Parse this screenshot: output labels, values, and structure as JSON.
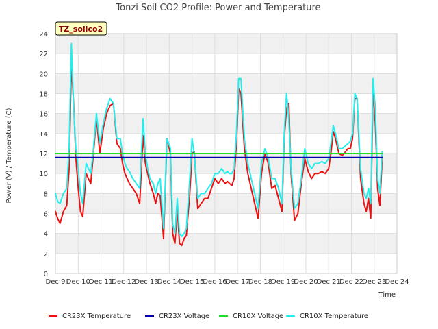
{
  "chart_data": {
    "type": "line",
    "title": "Tonzi Soil CO2 Profile: Power and Temperature",
    "tag": "TZ_soilco2",
    "xlabel": "Time",
    "ylabel": "Power (V) / Temperature (C)",
    "xlim": [
      9,
      24
    ],
    "ylim": [
      0,
      24
    ],
    "x_ticks": [
      9,
      10,
      11,
      12,
      13,
      14,
      15,
      16,
      17,
      18,
      19,
      20,
      21,
      22,
      23,
      24
    ],
    "x_tick_labels": [
      "Dec 9",
      "Dec 10",
      "Dec 11",
      "Dec 12",
      "Dec 13",
      "Dec 14",
      "Dec 15",
      "Dec 16",
      "Dec 17",
      "Dec 18",
      "Dec 19",
      "Dec 20",
      "Dec 21",
      "Dec 22",
      "Dec 23",
      "Dec 24"
    ],
    "y_ticks": [
      0,
      2,
      4,
      6,
      8,
      10,
      12,
      14,
      16,
      18,
      20,
      22,
      24
    ],
    "y_tick_labels": [
      "0",
      "2",
      "4",
      "6",
      "8",
      "10",
      "12",
      "14",
      "16",
      "18",
      "20",
      "22",
      "24"
    ],
    "grid": true,
    "legend_position": "bottom",
    "series": [
      {
        "name": "CR23X Temperature",
        "color": "#ee1111",
        "x": [
          9.0,
          9.1,
          9.2,
          9.35,
          9.5,
          9.6,
          9.7,
          9.8,
          9.9,
          10.0,
          10.1,
          10.2,
          10.35,
          10.45,
          10.55,
          10.65,
          10.8,
          10.95,
          11.1,
          11.25,
          11.4,
          11.55,
          11.7,
          11.85,
          11.95,
          12.05,
          12.15,
          12.25,
          12.4,
          12.55,
          12.7,
          12.85,
          12.95,
          13.05,
          13.15,
          13.3,
          13.4,
          13.5,
          13.6,
          13.75,
          13.9,
          14.05,
          14.15,
          14.25,
          14.35,
          14.45,
          14.55,
          14.65,
          14.75,
          14.9,
          15.0,
          15.1,
          15.25,
          15.4,
          15.55,
          15.7,
          15.85,
          16.0,
          16.15,
          16.3,
          16.45,
          16.55,
          16.65,
          16.75,
          16.85,
          16.95,
          17.05,
          17.15,
          17.3,
          17.45,
          17.6,
          17.75,
          17.9,
          18.05,
          18.2,
          18.35,
          18.5,
          18.65,
          18.8,
          18.95,
          19.05,
          19.15,
          19.25,
          19.35,
          19.5,
          19.65,
          19.8,
          19.95,
          20.1,
          20.25,
          20.4,
          20.55,
          20.7,
          20.85,
          21.0,
          21.1,
          21.2,
          21.3,
          21.45,
          21.6,
          21.75,
          21.85,
          21.95,
          22.05,
          22.15,
          22.25,
          22.4,
          22.55,
          22.65,
          22.75,
          22.85,
          22.95,
          23.05,
          23.15,
          23.25,
          23.35
        ],
        "y": [
          6.2,
          5.5,
          5.0,
          6.2,
          6.8,
          10.5,
          21.0,
          17.0,
          11.5,
          8.5,
          6.2,
          5.7,
          10.0,
          9.5,
          9.0,
          11.5,
          15.5,
          12.0,
          14.5,
          16.0,
          16.8,
          17.0,
          13.0,
          12.5,
          11.0,
          10.0,
          9.5,
          9.0,
          8.5,
          8.0,
          7.0,
          13.8,
          11.0,
          10.0,
          9.0,
          8.0,
          7.0,
          8.0,
          7.8,
          3.5,
          13.5,
          12.0,
          4.0,
          3.0,
          6.5,
          3.0,
          2.8,
          3.5,
          3.8,
          8.0,
          12.0,
          12.2,
          6.5,
          7.0,
          7.5,
          7.5,
          8.5,
          9.5,
          9.0,
          9.5,
          9.0,
          9.2,
          9.0,
          8.8,
          9.5,
          13.0,
          18.5,
          18.0,
          12.5,
          10.0,
          8.5,
          7.0,
          5.5,
          10.0,
          12.0,
          11.0,
          8.5,
          8.8,
          7.5,
          6.2,
          13.5,
          16.5,
          17.0,
          10.0,
          5.3,
          6.0,
          9.0,
          11.5,
          10.2,
          9.5,
          10.0,
          10.0,
          10.2,
          10.0,
          10.5,
          12.0,
          14.2,
          13.5,
          12.0,
          11.8,
          12.2,
          12.5,
          12.5,
          13.5,
          17.5,
          17.5,
          9.5,
          7.0,
          6.2,
          7.5,
          5.5,
          18.5,
          15.0,
          8.5,
          6.8,
          11.5
        ]
      },
      {
        "name": "CR23X Voltage",
        "color": "#0000aa",
        "x": [
          9.0,
          23.35
        ],
        "y": [
          11.6,
          11.6
        ]
      },
      {
        "name": "CR10X Voltage",
        "color": "#22dd22",
        "x": [
          9.0,
          23.35
        ],
        "y": [
          12.0,
          12.0
        ]
      },
      {
        "name": "CR10X Temperature",
        "color": "#22eeee",
        "x": [
          9.0,
          9.1,
          9.2,
          9.35,
          9.5,
          9.6,
          9.7,
          9.8,
          9.9,
          10.0,
          10.1,
          10.2,
          10.35,
          10.45,
          10.55,
          10.65,
          10.8,
          10.95,
          11.1,
          11.25,
          11.4,
          11.55,
          11.7,
          11.85,
          11.95,
          12.05,
          12.15,
          12.25,
          12.4,
          12.55,
          12.7,
          12.85,
          12.95,
          13.05,
          13.15,
          13.3,
          13.4,
          13.5,
          13.6,
          13.75,
          13.9,
          14.05,
          14.15,
          14.25,
          14.35,
          14.45,
          14.55,
          14.65,
          14.75,
          14.9,
          15.0,
          15.1,
          15.25,
          15.4,
          15.55,
          15.7,
          15.85,
          16.0,
          16.15,
          16.3,
          16.45,
          16.55,
          16.65,
          16.75,
          16.85,
          16.95,
          17.05,
          17.15,
          17.3,
          17.45,
          17.6,
          17.75,
          17.9,
          18.05,
          18.2,
          18.35,
          18.5,
          18.65,
          18.8,
          18.95,
          19.05,
          19.15,
          19.25,
          19.35,
          19.5,
          19.65,
          19.8,
          19.95,
          20.1,
          20.25,
          20.4,
          20.55,
          20.7,
          20.85,
          21.0,
          21.1,
          21.2,
          21.3,
          21.45,
          21.6,
          21.75,
          21.85,
          21.95,
          22.05,
          22.15,
          22.25,
          22.4,
          22.55,
          22.65,
          22.75,
          22.85,
          22.95,
          23.05,
          23.15,
          23.25,
          23.35
        ],
        "y": [
          8.0,
          7.2,
          7.0,
          8.0,
          8.5,
          12.5,
          23.0,
          16.5,
          12.5,
          10.5,
          8.0,
          7.0,
          11.0,
          10.5,
          10.0,
          12.0,
          16.0,
          13.0,
          15.0,
          16.5,
          17.5,
          17.0,
          13.5,
          13.5,
          12.0,
          11.0,
          10.5,
          10.2,
          9.5,
          9.0,
          8.5,
          15.5,
          12.0,
          10.5,
          9.5,
          9.0,
          8.0,
          9.0,
          9.5,
          4.5,
          13.5,
          12.5,
          5.0,
          4.0,
          7.5,
          4.0,
          3.7,
          4.0,
          4.5,
          9.5,
          13.5,
          12.0,
          7.5,
          8.0,
          8.0,
          8.5,
          9.0,
          10.0,
          10.0,
          10.5,
          10.0,
          10.2,
          10.0,
          10.0,
          10.5,
          14.0,
          19.5,
          19.5,
          13.5,
          11.0,
          9.5,
          8.0,
          6.5,
          11.0,
          12.5,
          11.5,
          9.5,
          9.5,
          8.5,
          7.0,
          14.0,
          18.0,
          15.5,
          10.5,
          6.5,
          7.0,
          9.5,
          12.5,
          11.0,
          10.5,
          11.0,
          11.0,
          11.2,
          11.0,
          11.5,
          13.0,
          14.8,
          14.0,
          12.5,
          12.5,
          12.8,
          13.0,
          13.2,
          14.0,
          18.0,
          17.5,
          10.5,
          8.0,
          7.5,
          8.5,
          7.0,
          19.5,
          16.5,
          9.5,
          8.0,
          12.2
        ]
      }
    ]
  }
}
